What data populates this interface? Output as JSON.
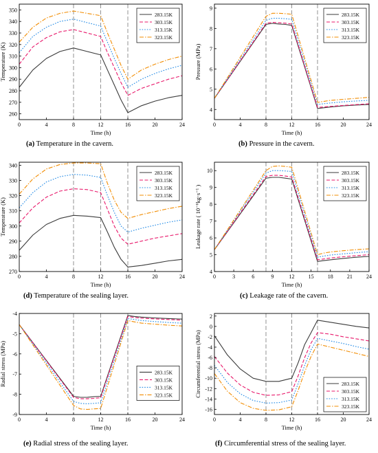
{
  "series_colors": [
    "#3a3a3a",
    "#e8176a",
    "#1e88e5",
    "#f28c00"
  ],
  "series_dash": [
    "",
    "5,2.5",
    "1.6,2",
    "6,2,1.5,2"
  ],
  "chart_data": [
    {
      "id": "a",
      "type": "line",
      "caption": {
        "tag": "(a)",
        "text": " Temperature in the cavern."
      },
      "xlabel": "Time (h)",
      "ylabel": "Temperature (K)",
      "xlim": [
        0,
        24
      ],
      "ylim": [
        255,
        355
      ],
      "xticks": [
        0,
        4,
        8,
        12,
        16,
        20,
        24
      ],
      "yticks": [
        260,
        270,
        280,
        290,
        300,
        310,
        320,
        330,
        340,
        350
      ],
      "vlines": [
        8,
        12,
        16
      ],
      "legend_position": "top-right",
      "series": [
        {
          "name": "283.15K",
          "x": [
            0,
            2,
            4,
            6,
            8,
            10,
            12,
            13,
            14,
            15,
            16,
            18,
            20,
            22,
            24
          ],
          "y": [
            283,
            298,
            308,
            314,
            317,
            314,
            311,
            298,
            285,
            272,
            261,
            267,
            271,
            274,
            276
          ]
        },
        {
          "name": "303.15K",
          "x": [
            0,
            2,
            4,
            6,
            8,
            10,
            12,
            13,
            14,
            15,
            16,
            18,
            20,
            22,
            24
          ],
          "y": [
            303,
            318,
            326,
            331,
            333,
            330,
            327,
            313,
            300,
            287,
            276,
            282,
            286,
            290,
            293
          ]
        },
        {
          "name": "313.15K",
          "x": [
            0,
            2,
            4,
            6,
            8,
            10,
            12,
            13,
            14,
            15,
            16,
            18,
            20,
            22,
            24
          ],
          "y": [
            313,
            327,
            335,
            340,
            342,
            339,
            336,
            322,
            308,
            295,
            283,
            290,
            295,
            299,
            302
          ]
        },
        {
          "name": "323.15K",
          "x": [
            0,
            2,
            4,
            6,
            8,
            10,
            12,
            13,
            14,
            15,
            16,
            18,
            20,
            22,
            24
          ],
          "y": [
            322,
            335,
            343,
            347,
            349,
            347,
            345,
            330,
            316,
            302,
            290,
            298,
            303,
            307,
            310
          ]
        }
      ]
    },
    {
      "id": "b",
      "type": "line",
      "caption": {
        "tag": "(b)",
        "text": " Pressure in the cavern."
      },
      "xlabel": "Time (h)",
      "ylabel": "Pressure (MPa)",
      "xlim": [
        0,
        24
      ],
      "ylim": [
        3.5,
        9.2
      ],
      "xticks": [
        0,
        4,
        8,
        12,
        16,
        20,
        24
      ],
      "yticks": [
        4,
        5,
        6,
        7,
        8,
        9
      ],
      "vlines": [
        8,
        12,
        16
      ],
      "legend_position": "top-right",
      "series": [
        {
          "name": "283.15K",
          "x": [
            0,
            8,
            9,
            10,
            11,
            12,
            16,
            18,
            20,
            22,
            24
          ],
          "y": [
            4.55,
            8.2,
            8.25,
            8.22,
            8.2,
            8.15,
            4.05,
            4.12,
            4.18,
            4.22,
            4.25
          ]
        },
        {
          "name": "303.15K",
          "x": [
            0,
            8,
            9,
            10,
            11,
            12,
            16,
            18,
            20,
            22,
            24
          ],
          "y": [
            4.55,
            8.25,
            8.3,
            8.28,
            8.26,
            8.22,
            4.1,
            4.15,
            4.2,
            4.24,
            4.28
          ]
        },
        {
          "name": "313.15K",
          "x": [
            0,
            8,
            9,
            10,
            11,
            12,
            16,
            18,
            20,
            22,
            24
          ],
          "y": [
            4.55,
            8.4,
            8.5,
            8.5,
            8.48,
            8.45,
            4.25,
            4.32,
            4.38,
            4.42,
            4.45
          ]
        },
        {
          "name": "323.15K",
          "x": [
            0,
            8,
            9,
            10,
            11,
            12,
            16,
            18,
            20,
            22,
            24
          ],
          "y": [
            4.55,
            8.6,
            8.75,
            8.75,
            8.73,
            8.7,
            4.35,
            4.45,
            4.5,
            4.55,
            4.6
          ]
        }
      ]
    },
    {
      "id": "d",
      "type": "line",
      "caption": {
        "tag": "(d)",
        "text": " Temperature of the sealing layer."
      },
      "xlabel": "Time (h)",
      "ylabel": "Temperature (K)",
      "xlim": [
        0,
        24
      ],
      "ylim": [
        270,
        342
      ],
      "xticks": [
        0,
        4,
        8,
        12,
        16,
        20,
        24
      ],
      "yticks": [
        270,
        280,
        290,
        300,
        310,
        320,
        330,
        340
      ],
      "vlines": [
        8,
        12,
        16
      ],
      "legend_position": "top-right",
      "series": [
        {
          "name": "283.15K",
          "x": [
            0,
            2,
            4,
            6,
            8,
            10,
            12,
            13,
            14,
            15,
            16,
            18,
            20,
            22,
            24
          ],
          "y": [
            284,
            294,
            301,
            305,
            307,
            306.5,
            305.5,
            296,
            286,
            278,
            273,
            274,
            275.5,
            277,
            278
          ]
        },
        {
          "name": "303.15K",
          "x": [
            0,
            2,
            4,
            6,
            8,
            10,
            12,
            13,
            14,
            15,
            16,
            18,
            20,
            22,
            24
          ],
          "y": [
            302,
            312,
            319,
            323,
            324.5,
            324,
            322,
            311,
            300,
            292,
            288,
            290,
            292,
            293.5,
            295
          ]
        },
        {
          "name": "313.15K",
          "x": [
            0,
            2,
            4,
            6,
            8,
            10,
            12,
            13,
            14,
            15,
            16,
            18,
            20,
            22,
            24
          ],
          "y": [
            312,
            322,
            329,
            332.5,
            334,
            333.5,
            332,
            320,
            309,
            300,
            296,
            298.5,
            300.5,
            302.5,
            304
          ]
        },
        {
          "name": "323.15K",
          "x": [
            0,
            2,
            4,
            6,
            8,
            10,
            12,
            13,
            14,
            15,
            16,
            18,
            20,
            22,
            24
          ],
          "y": [
            321,
            331,
            337.5,
            340.5,
            341.5,
            341.5,
            341,
            328,
            317,
            309,
            305,
            307.5,
            309.5,
            311.5,
            313
          ]
        }
      ]
    },
    {
      "id": "c",
      "type": "line",
      "caption": {
        "tag": "(c)",
        "text": " Leakage rate of the cavern."
      },
      "xlabel": "Time (h)",
      "ylabel": "Leakage rate (  10⁻⁶kg·s⁻¹  )",
      "xlim": [
        0,
        24
      ],
      "ylim": [
        4,
        10.5
      ],
      "xticks": [
        0,
        3,
        6,
        9,
        12,
        15,
        18,
        21,
        24
      ],
      "yticks": [
        4,
        5,
        6,
        7,
        8,
        9,
        10
      ],
      "vlines": [
        8,
        12,
        16
      ],
      "legend_position": "top-right",
      "series": [
        {
          "name": "283.15K",
          "x": [
            0,
            8,
            9,
            10,
            11,
            12,
            16,
            17,
            18,
            20,
            22,
            24
          ],
          "y": [
            5.3,
            9.55,
            9.6,
            9.6,
            9.55,
            9.5,
            4.6,
            4.65,
            4.7,
            4.78,
            4.85,
            4.9
          ]
        },
        {
          "name": "303.15K",
          "x": [
            0,
            8,
            9,
            10,
            11,
            12,
            16,
            17,
            18,
            20,
            22,
            24
          ],
          "y": [
            5.3,
            9.65,
            9.72,
            9.72,
            9.68,
            9.62,
            4.7,
            4.75,
            4.8,
            4.88,
            4.94,
            5.0
          ]
        },
        {
          "name": "313.15K",
          "x": [
            0,
            8,
            9,
            10,
            11,
            12,
            16,
            17,
            18,
            20,
            22,
            24
          ],
          "y": [
            5.3,
            9.85,
            10.0,
            10.0,
            9.98,
            9.95,
            4.85,
            4.92,
            4.98,
            5.05,
            5.12,
            5.18
          ]
        },
        {
          "name": "323.15K",
          "x": [
            0,
            8,
            9,
            10,
            11,
            12,
            16,
            17,
            18,
            20,
            22,
            24
          ],
          "y": [
            5.3,
            10.0,
            10.25,
            10.28,
            10.25,
            10.2,
            5.0,
            5.1,
            5.16,
            5.24,
            5.3,
            5.35
          ]
        }
      ]
    },
    {
      "id": "e",
      "type": "line",
      "caption": {
        "tag": "(e)",
        "text": " Radial stress of the sealing layer."
      },
      "xlabel": "Time (h)",
      "ylabel": "Radial stress (MPa)",
      "xlim": [
        0,
        24
      ],
      "ylim": [
        -9,
        -4
      ],
      "xticks": [
        0,
        4,
        8,
        12,
        16,
        20,
        24
      ],
      "yticks": [
        -9,
        -8,
        -7,
        -6,
        -5,
        -4
      ],
      "vlines": [
        8,
        12,
        16
      ],
      "legend_position": "center-right",
      "series": [
        {
          "name": "283.15K",
          "x": [
            0,
            8,
            9,
            10,
            11,
            12,
            16,
            17,
            18,
            20,
            22,
            24
          ],
          "y": [
            -4.55,
            -8.1,
            -8.15,
            -8.15,
            -8.12,
            -8.1,
            -4.1,
            -4.15,
            -4.18,
            -4.22,
            -4.25,
            -4.28
          ]
        },
        {
          "name": "303.15K",
          "x": [
            0,
            8,
            9,
            10,
            11,
            12,
            16,
            17,
            18,
            20,
            22,
            24
          ],
          "y": [
            -4.55,
            -8.15,
            -8.22,
            -8.22,
            -8.2,
            -8.17,
            -4.15,
            -4.2,
            -4.23,
            -4.27,
            -4.3,
            -4.33
          ]
        },
        {
          "name": "313.15K",
          "x": [
            0,
            8,
            9,
            10,
            11,
            12,
            16,
            17,
            18,
            20,
            22,
            24
          ],
          "y": [
            -4.55,
            -8.35,
            -8.45,
            -8.47,
            -8.45,
            -8.42,
            -4.25,
            -4.3,
            -4.35,
            -4.4,
            -4.45,
            -4.48
          ]
        },
        {
          "name": "323.15K",
          "x": [
            0,
            8,
            9,
            10,
            11,
            12,
            16,
            17,
            18,
            20,
            22,
            24
          ],
          "y": [
            -4.55,
            -8.55,
            -8.72,
            -8.75,
            -8.72,
            -8.7,
            -4.35,
            -4.42,
            -4.48,
            -4.53,
            -4.58,
            -4.62
          ]
        }
      ]
    },
    {
      "id": "f",
      "type": "line",
      "caption": {
        "tag": "(f)",
        "text": " Circumferential stress of the sealing layer."
      },
      "xlabel": "Time (h)",
      "ylabel": "Circumferential stress (MPa)",
      "xlim": [
        0,
        24
      ],
      "ylim": [
        -17,
        2.5
      ],
      "xticks": [
        0,
        4,
        8,
        12,
        16,
        20,
        24
      ],
      "yticks": [
        -16,
        -14,
        -12,
        -10,
        -8,
        -6,
        -4,
        -2,
        0,
        2
      ],
      "vlines": [
        8,
        12,
        16
      ],
      "legend_position": "bottom-right",
      "series": [
        {
          "name": "283.15K",
          "x": [
            0,
            2,
            4,
            6,
            8,
            10,
            12,
            13,
            14,
            15,
            16,
            18,
            20,
            22,
            24
          ],
          "y": [
            -1.8,
            -5.5,
            -8.2,
            -10,
            -10.6,
            -10.6,
            -10,
            -7,
            -3.5,
            -1.2,
            1.2,
            0.8,
            0.4,
            0,
            -0.3
          ]
        },
        {
          "name": "303.15K",
          "x": [
            0,
            2,
            4,
            6,
            8,
            10,
            12,
            13,
            14,
            15,
            16,
            18,
            20,
            22,
            24
          ],
          "y": [
            -5.8,
            -9,
            -11.3,
            -12.7,
            -13.3,
            -13.2,
            -12.6,
            -9.5,
            -6,
            -3.2,
            -1.2,
            -1.5,
            -2,
            -2.4,
            -2.8
          ]
        },
        {
          "name": "313.15K",
          "x": [
            0,
            2,
            4,
            6,
            8,
            10,
            12,
            13,
            14,
            15,
            16,
            18,
            20,
            22,
            24
          ],
          "y": [
            -7.5,
            -10.8,
            -13,
            -14.3,
            -14.8,
            -14.7,
            -14.2,
            -11,
            -7.5,
            -4.5,
            -2.3,
            -2.8,
            -3.3,
            -3.9,
            -4.4
          ]
        },
        {
          "name": "323.15K",
          "x": [
            0,
            2,
            4,
            6,
            8,
            10,
            12,
            13,
            14,
            15,
            16,
            18,
            20,
            22,
            24
          ],
          "y": [
            -9.1,
            -12.5,
            -14.7,
            -15.8,
            -16.2,
            -16.1,
            -15.5,
            -12.3,
            -8.8,
            -5.8,
            -3.4,
            -4,
            -4.6,
            -5.2,
            -5.8
          ]
        }
      ]
    }
  ]
}
